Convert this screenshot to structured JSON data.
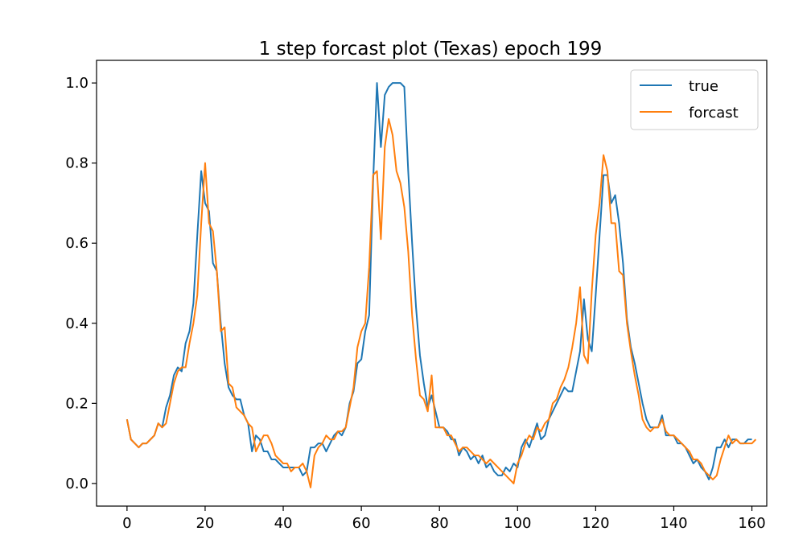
{
  "chart_data": {
    "type": "line",
    "title": "1 step forcast plot (Texas) epoch 199",
    "xlabel": "",
    "ylabel": "",
    "xlim": [
      -7.8,
      163.8
    ],
    "ylim": [
      -0.0565,
      1.0565
    ],
    "xticks": [
      0,
      20,
      40,
      60,
      80,
      100,
      120,
      140,
      160
    ],
    "yticks": [
      0.0,
      0.2,
      0.4,
      0.6,
      0.8,
      1.0
    ],
    "xtick_labels": [
      "0",
      "20",
      "40",
      "60",
      "80",
      "100",
      "120",
      "140",
      "160"
    ],
    "ytick_labels": [
      "0.0",
      "0.2",
      "0.4",
      "0.6",
      "0.8",
      "1.0"
    ],
    "grid": false,
    "legend_position": "top-right",
    "series": [
      {
        "name": "true",
        "color": "#1f77b4",
        "values": [
          0.16,
          0.11,
          0.1,
          0.09,
          0.1,
          0.1,
          0.11,
          0.12,
          0.15,
          0.14,
          0.19,
          0.22,
          0.27,
          0.29,
          0.28,
          0.35,
          0.38,
          0.45,
          0.62,
          0.78,
          0.7,
          0.68,
          0.55,
          0.53,
          0.4,
          0.3,
          0.24,
          0.22,
          0.21,
          0.21,
          0.17,
          0.15,
          0.08,
          0.12,
          0.11,
          0.08,
          0.08,
          0.06,
          0.06,
          0.05,
          0.04,
          0.04,
          0.04,
          0.04,
          0.04,
          0.02,
          0.03,
          0.09,
          0.09,
          0.1,
          0.1,
          0.08,
          0.1,
          0.12,
          0.13,
          0.12,
          0.14,
          0.2,
          0.23,
          0.3,
          0.31,
          0.38,
          0.42,
          0.75,
          1.0,
          0.84,
          0.97,
          0.99,
          1.0,
          1.0,
          1.0,
          0.99,
          0.78,
          0.6,
          0.44,
          0.32,
          0.25,
          0.19,
          0.22,
          0.18,
          0.14,
          0.14,
          0.13,
          0.11,
          0.11,
          0.07,
          0.09,
          0.08,
          0.06,
          0.07,
          0.05,
          0.07,
          0.04,
          0.05,
          0.03,
          0.02,
          0.02,
          0.04,
          0.03,
          0.05,
          0.04,
          0.09,
          0.11,
          0.09,
          0.12,
          0.15,
          0.11,
          0.12,
          0.16,
          0.18,
          0.2,
          0.22,
          0.24,
          0.23,
          0.23,
          0.28,
          0.33,
          0.46,
          0.36,
          0.33,
          0.47,
          0.62,
          0.77,
          0.77,
          0.7,
          0.72,
          0.65,
          0.55,
          0.41,
          0.34,
          0.3,
          0.25,
          0.2,
          0.16,
          0.14,
          0.14,
          0.14,
          0.17,
          0.12,
          0.12,
          0.12,
          0.1,
          0.1,
          0.09,
          0.07,
          0.05,
          0.06,
          0.04,
          0.03,
          0.01,
          0.04,
          0.09,
          0.09,
          0.11,
          0.09,
          0.11,
          0.11,
          0.1,
          0.1,
          0.11,
          0.11
        ],
        "x_start": 0
      },
      {
        "name": "forcast",
        "color": "#ff7f0e",
        "values": [
          0.16,
          0.11,
          0.1,
          0.09,
          0.1,
          0.1,
          0.11,
          0.12,
          0.15,
          0.14,
          0.15,
          0.2,
          0.25,
          0.28,
          0.29,
          0.29,
          0.35,
          0.4,
          0.47,
          0.65,
          0.8,
          0.65,
          0.63,
          0.53,
          0.38,
          0.39,
          0.25,
          0.24,
          0.19,
          0.18,
          0.17,
          0.15,
          0.14,
          0.08,
          0.1,
          0.12,
          0.12,
          0.1,
          0.07,
          0.06,
          0.05,
          0.05,
          0.03,
          0.04,
          0.04,
          0.05,
          0.03,
          -0.01,
          0.07,
          0.09,
          0.1,
          0.12,
          0.11,
          0.11,
          0.13,
          0.13,
          0.14,
          0.19,
          0.24,
          0.34,
          0.38,
          0.4,
          0.54,
          0.77,
          0.78,
          0.61,
          0.84,
          0.91,
          0.87,
          0.78,
          0.75,
          0.69,
          0.58,
          0.42,
          0.31,
          0.22,
          0.21,
          0.18,
          0.27,
          0.14,
          0.14,
          0.14,
          0.12,
          0.12,
          0.1,
          0.08,
          0.09,
          0.09,
          0.08,
          0.07,
          0.07,
          0.06,
          0.05,
          0.06,
          0.05,
          0.04,
          0.03,
          0.02,
          0.01,
          0.0,
          0.05,
          0.07,
          0.1,
          0.12,
          0.11,
          0.14,
          0.13,
          0.15,
          0.16,
          0.2,
          0.21,
          0.24,
          0.26,
          0.29,
          0.34,
          0.4,
          0.49,
          0.32,
          0.3,
          0.48,
          0.62,
          0.7,
          0.82,
          0.78,
          0.65,
          0.65,
          0.53,
          0.52,
          0.4,
          0.33,
          0.27,
          0.22,
          0.16,
          0.14,
          0.13,
          0.14,
          0.14,
          0.16,
          0.13,
          0.12,
          0.12,
          0.11,
          0.1,
          0.09,
          0.08,
          0.06,
          0.06,
          0.05,
          0.03,
          0.02,
          0.01,
          0.02,
          0.06,
          0.09,
          0.12,
          0.1,
          0.11,
          0.1,
          0.1,
          0.1,
          0.1,
          0.11
        ],
        "x_start": 0
      }
    ]
  }
}
